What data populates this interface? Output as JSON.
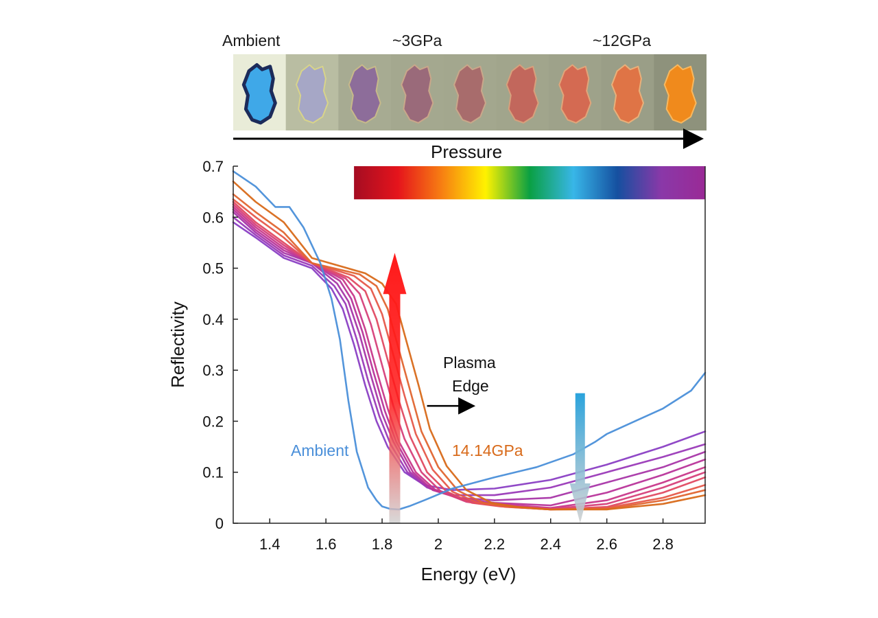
{
  "photo_strip": {
    "labels": {
      "ambient": "Ambient",
      "p3": "~3GPa",
      "p12": "~12GPa"
    },
    "frames": [
      {
        "bg": "#e9ecd8",
        "sample": "#3fa8e8",
        "rim": "#1c2b5a"
      },
      {
        "bg": "#b9bda2",
        "sample": "#a6a7c6",
        "rim": "#d8d48a"
      },
      {
        "bg": "#a7ab92",
        "sample": "#8d6d9a",
        "rim": "#c7b98a"
      },
      {
        "bg": "#a4a88f",
        "sample": "#9a6a7a",
        "rim": "#c9a78a"
      },
      {
        "bg": "#a3a78e",
        "sample": "#a86c6c",
        "rim": "#c9a78a"
      },
      {
        "bg": "#a1a58c",
        "sample": "#c2675c",
        "rim": "#d7a07c"
      },
      {
        "bg": "#9ea28a",
        "sample": "#d46a52",
        "rim": "#e1a57a"
      },
      {
        "bg": "#9a9e87",
        "sample": "#df7446",
        "rim": "#e9b07a"
      },
      {
        "bg": "#8e927c",
        "sample": "#f08a1c",
        "rim": "#f7b860"
      }
    ],
    "pressure_label": "Pressure"
  },
  "chart_data": {
    "type": "line",
    "xlabel": "Energy (eV)",
    "ylabel": "Reflectivity",
    "xlim": [
      1.27,
      2.95
    ],
    "ylim": [
      0,
      0.7
    ],
    "xticks": [
      1.4,
      1.6,
      1.8,
      2.0,
      2.2,
      2.4,
      2.6,
      2.8
    ],
    "xtick_labels": [
      "1.4",
      "1.6",
      "1.8",
      "2",
      "2.2",
      "2.4",
      "2.6",
      "2.8"
    ],
    "yticks": [
      0,
      0.1,
      0.2,
      0.3,
      0.4,
      0.5,
      0.6,
      0.7
    ],
    "ytick_labels": [
      "0",
      "0.1",
      "0.2",
      "0.3",
      "0.4",
      "0.5",
      "0.6",
      "0.7"
    ],
    "grid": false,
    "colorbar": {
      "x_range": [
        1.7,
        2.95
      ],
      "y_range": [
        0.635,
        0.7
      ],
      "colors": [
        "#a50c22",
        "#e5141c",
        "#f77f12",
        "#fff200",
        "#0aa043",
        "#38b6e8",
        "#1550a0",
        "#8a38a8",
        "#9a2a96"
      ]
    },
    "series": [
      {
        "name": "Ambient",
        "color": "#4a8fd9",
        "x": [
          1.27,
          1.35,
          1.42,
          1.47,
          1.52,
          1.58,
          1.62,
          1.65,
          1.68,
          1.71,
          1.75,
          1.78,
          1.8,
          1.83,
          1.86,
          1.9,
          1.95,
          2.05,
          2.2,
          2.35,
          2.48,
          2.56,
          2.6,
          2.7,
          2.8,
          2.9,
          2.95
        ],
        "y": [
          0.69,
          0.66,
          0.62,
          0.62,
          0.58,
          0.51,
          0.44,
          0.36,
          0.24,
          0.14,
          0.07,
          0.045,
          0.033,
          0.028,
          0.027,
          0.034,
          0.045,
          0.068,
          0.09,
          0.11,
          0.135,
          0.16,
          0.175,
          0.2,
          0.225,
          0.26,
          0.295
        ]
      },
      {
        "color": "#8a3fc4",
        "x": [
          1.27,
          1.35,
          1.45,
          1.55,
          1.62,
          1.66,
          1.7,
          1.74,
          1.78,
          1.82,
          1.88,
          1.95,
          2.05,
          2.2,
          2.4,
          2.6,
          2.8,
          2.95
        ],
        "y": [
          0.59,
          0.56,
          0.52,
          0.5,
          0.46,
          0.42,
          0.35,
          0.27,
          0.2,
          0.15,
          0.1,
          0.075,
          0.065,
          0.068,
          0.085,
          0.115,
          0.15,
          0.18
        ]
      },
      {
        "color": "#9a3ab8",
        "x": [
          1.27,
          1.35,
          1.45,
          1.55,
          1.63,
          1.67,
          1.71,
          1.75,
          1.79,
          1.83,
          1.89,
          1.96,
          2.06,
          2.2,
          2.4,
          2.6,
          2.8,
          2.95
        ],
        "y": [
          0.6,
          0.565,
          0.525,
          0.505,
          0.465,
          0.43,
          0.36,
          0.28,
          0.21,
          0.155,
          0.1,
          0.07,
          0.055,
          0.055,
          0.07,
          0.1,
          0.13,
          0.155
        ]
      },
      {
        "color": "#a836a8",
        "x": [
          1.27,
          1.35,
          1.45,
          1.55,
          1.64,
          1.68,
          1.72,
          1.76,
          1.8,
          1.84,
          1.9,
          1.97,
          2.07,
          2.2,
          2.4,
          2.6,
          2.8,
          2.95
        ],
        "y": [
          0.61,
          0.57,
          0.53,
          0.51,
          0.47,
          0.435,
          0.37,
          0.29,
          0.215,
          0.16,
          0.1,
          0.068,
          0.05,
          0.045,
          0.05,
          0.08,
          0.11,
          0.14
        ]
      },
      {
        "color": "#b8349a",
        "x": [
          1.27,
          1.35,
          1.45,
          1.55,
          1.65,
          1.69,
          1.73,
          1.77,
          1.81,
          1.85,
          1.91,
          1.98,
          2.08,
          2.2,
          2.4,
          2.6,
          2.8,
          2.95
        ],
        "y": [
          0.615,
          0.575,
          0.535,
          0.51,
          0.475,
          0.44,
          0.375,
          0.295,
          0.22,
          0.16,
          0.1,
          0.065,
          0.048,
          0.04,
          0.035,
          0.06,
          0.095,
          0.125
        ]
      },
      {
        "color": "#c8388a",
        "x": [
          1.27,
          1.35,
          1.45,
          1.55,
          1.66,
          1.7,
          1.74,
          1.78,
          1.82,
          1.86,
          1.92,
          1.99,
          2.09,
          2.2,
          2.4,
          2.6,
          2.8,
          2.95
        ],
        "y": [
          0.62,
          0.58,
          0.54,
          0.51,
          0.478,
          0.445,
          0.38,
          0.3,
          0.225,
          0.16,
          0.1,
          0.065,
          0.045,
          0.038,
          0.03,
          0.045,
          0.08,
          0.11
        ]
      },
      {
        "color": "#d6407a",
        "x": [
          1.27,
          1.35,
          1.45,
          1.55,
          1.67,
          1.72,
          1.76,
          1.8,
          1.84,
          1.88,
          1.94,
          2.01,
          2.1,
          2.2,
          2.4,
          2.6,
          2.8,
          2.95
        ],
        "y": [
          0.625,
          0.585,
          0.545,
          0.51,
          0.48,
          0.45,
          0.39,
          0.31,
          0.23,
          0.165,
          0.1,
          0.062,
          0.042,
          0.035,
          0.028,
          0.038,
          0.07,
          0.1
        ]
      },
      {
        "color": "#e04a62",
        "x": [
          1.27,
          1.35,
          1.45,
          1.55,
          1.68,
          1.74,
          1.78,
          1.82,
          1.86,
          1.9,
          1.96,
          2.03,
          2.12,
          2.22,
          2.4,
          2.6,
          2.8,
          2.95
        ],
        "y": [
          0.63,
          0.59,
          0.55,
          0.51,
          0.482,
          0.455,
          0.4,
          0.32,
          0.24,
          0.17,
          0.1,
          0.062,
          0.04,
          0.033,
          0.027,
          0.032,
          0.06,
          0.09
        ]
      },
      {
        "color": "#e6584a",
        "x": [
          1.27,
          1.35,
          1.45,
          1.55,
          1.7,
          1.76,
          1.8,
          1.84,
          1.88,
          1.92,
          1.98,
          2.05,
          2.14,
          2.24,
          2.4,
          2.6,
          2.8,
          2.95
        ],
        "y": [
          0.635,
          0.6,
          0.56,
          0.51,
          0.485,
          0.46,
          0.41,
          0.33,
          0.25,
          0.175,
          0.105,
          0.062,
          0.04,
          0.032,
          0.027,
          0.03,
          0.05,
          0.075
        ]
      },
      {
        "color": "#e06530",
        "x": [
          1.27,
          1.35,
          1.45,
          1.55,
          1.72,
          1.78,
          1.82,
          1.86,
          1.9,
          1.94,
          2.0,
          2.07,
          2.16,
          2.26,
          2.4,
          2.6,
          2.8,
          2.95
        ],
        "y": [
          0.645,
          0.61,
          0.57,
          0.51,
          0.488,
          0.465,
          0.42,
          0.34,
          0.26,
          0.18,
          0.11,
          0.064,
          0.04,
          0.032,
          0.027,
          0.028,
          0.045,
          0.065
        ]
      },
      {
        "name": "14.14GPa",
        "color": "#d86a1a",
        "x": [
          1.27,
          1.35,
          1.45,
          1.55,
          1.74,
          1.8,
          1.85,
          1.89,
          1.93,
          1.97,
          2.03,
          2.1,
          2.19,
          2.28,
          2.4,
          2.6,
          2.8,
          2.95
        ],
        "y": [
          0.67,
          0.63,
          0.59,
          0.52,
          0.49,
          0.47,
          0.43,
          0.35,
          0.27,
          0.185,
          0.112,
          0.065,
          0.04,
          0.032,
          0.027,
          0.027,
          0.038,
          0.055
        ]
      }
    ],
    "annotations": {
      "ambient_label": "Ambient",
      "pressure_label": "14.14GPa",
      "plasma_edge_line1": "Plasma",
      "plasma_edge_line2": "Edge",
      "red_arrow": {
        "x": 1.845,
        "y_from": 0.0,
        "y_to": 0.53,
        "color_top": "#ff1a1a",
        "color_bottom": "#cfcfcf"
      },
      "blue_arrow": {
        "x": 2.505,
        "y_from": 0.255,
        "y_to": 0.0,
        "color_top": "#2aa3dc",
        "color_bottom": "#cfcfcf"
      },
      "edge_arrow": {
        "x_from": 1.96,
        "x_to": 2.12,
        "y": 0.23
      }
    }
  }
}
